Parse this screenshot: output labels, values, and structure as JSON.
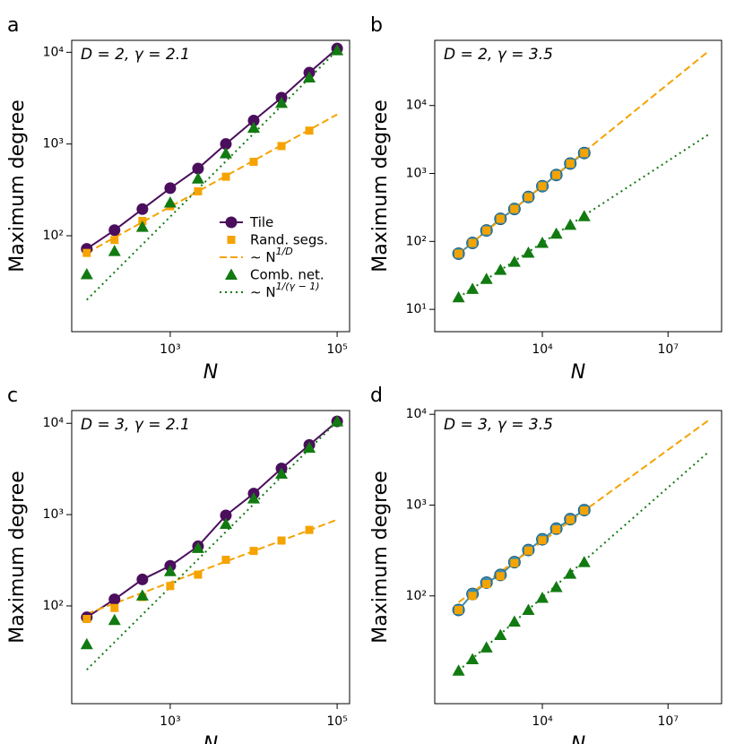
{
  "chart_data": [
    {
      "type": "line",
      "panel_label": "a",
      "annotation": "D = 2, γ = 2.1",
      "xlabel": "N",
      "ylabel": "Maximum degree",
      "log_x": true,
      "log_y": true,
      "legend": "center right",
      "xlim": [
        66,
        141000
      ],
      "ylim": [
        9,
        13500
      ],
      "xticks": [
        {
          "value": 1000,
          "label": "10³"
        },
        {
          "value": 100000,
          "label": "10⁵"
        }
      ],
      "yticks": [
        {
          "value": 100,
          "label": "10²"
        },
        {
          "value": 1000,
          "label": "10³"
        },
        {
          "value": 10000,
          "label": "10⁴"
        }
      ],
      "x": [
        100,
        215,
        464,
        1000,
        2154,
        4642,
        10000,
        21544,
        46416,
        100000
      ],
      "series": [
        {
          "name": "Tile",
          "color": "#4a0e5c",
          "marker": "circle",
          "line": "solid",
          "values": [
            72,
            115,
            195,
            330,
            540,
            1000,
            1800,
            3200,
            6000,
            11000
          ]
        },
        {
          "name": "Rand. segs.",
          "color": "#f5a300",
          "marker": "square",
          "line": "none",
          "values": [
            65,
            90,
            145,
            210,
            305,
            440,
            640,
            950,
            1400,
            null
          ]
        },
        {
          "name": "∼ N",
          "name_sup": "1/D",
          "color": "#f5a300",
          "marker": "none",
          "line": "dashed",
          "x": [
            100,
            100000
          ],
          "values": [
            65,
            2100
          ]
        },
        {
          "name": "Comb. net.",
          "color": "#117a11",
          "marker": "triangle",
          "line": "none",
          "values": [
            38,
            68,
            125,
            230,
            420,
            790,
            1500,
            2800,
            5300,
            10500
          ]
        },
        {
          "name": "∼ N",
          "name_sup": "1/(γ − 1)",
          "color": "#117a11",
          "marker": "none",
          "line": "dotted",
          "x": [
            100,
            100000
          ],
          "values": [
            20,
            10500
          ]
        }
      ]
    },
    {
      "type": "line",
      "panel_label": "b",
      "annotation": "D = 2, γ = 3.5",
      "xlabel": "N",
      "ylabel": "Maximum degree",
      "log_x": true,
      "log_y": true,
      "xlim": [
        27,
        190000000
      ],
      "ylim": [
        4.7,
        91000
      ],
      "xticks": [
        {
          "value": 10000,
          "label": "10⁴"
        },
        {
          "value": 10000000,
          "label": "10⁷"
        }
      ],
      "yticks": [
        {
          "value": 10,
          "label": "10¹"
        },
        {
          "value": 100,
          "label": "10²"
        },
        {
          "value": 1000,
          "label": "10³"
        },
        {
          "value": 10000,
          "label": "10⁴"
        }
      ],
      "x": [
        100,
        215,
        464,
        1000,
        2154,
        4642,
        10000,
        21544,
        46416,
        100000
      ],
      "series": [
        {
          "color": "#3a8db0",
          "marker": "circle",
          "line": "solid",
          "values": [
            66,
            95,
            145,
            215,
            300,
            450,
            650,
            950,
            1400,
            2000
          ]
        },
        {
          "color": "#f5a300",
          "marker": "square",
          "line": "none",
          "values": [
            66,
            95,
            145,
            215,
            300,
            450,
            650,
            950,
            1400,
            2000
          ]
        },
        {
          "color": "#f5a300",
          "marker": "none",
          "line": "dashed",
          "x": [
            100,
            90000000
          ],
          "values": [
            66,
            62000
          ]
        },
        {
          "color": "#117a11",
          "marker": "triangle",
          "line": "none",
          "values": [
            15,
            20,
            28,
            38,
            50,
            68,
            95,
            130,
            175,
            235
          ]
        },
        {
          "color": "#117a11",
          "marker": "none",
          "line": "dotted",
          "x": [
            100,
            90000000
          ],
          "values": [
            15,
            3700
          ]
        }
      ]
    },
    {
      "type": "line",
      "panel_label": "c",
      "annotation": "D = 3, γ = 2.1",
      "xlabel": "N",
      "ylabel": "Maximum degree",
      "log_x": true,
      "log_y": true,
      "xlim": [
        66,
        141000
      ],
      "ylim": [
        8.5,
        13800
      ],
      "xticks": [
        {
          "value": 1000,
          "label": "10³"
        },
        {
          "value": 100000,
          "label": "10⁵"
        }
      ],
      "yticks": [
        {
          "value": 100,
          "label": "10²"
        },
        {
          "value": 1000,
          "label": "10³"
        },
        {
          "value": 10000,
          "label": "10⁴"
        }
      ],
      "x": [
        100,
        215,
        464,
        1000,
        2154,
        4642,
        10000,
        21544,
        46416,
        100000
      ],
      "series": [
        {
          "color": "#4a0e5c",
          "marker": "circle",
          "line": "solid",
          "values": [
            75,
            118,
            195,
            275,
            450,
            980,
            1700,
            3200,
            5800,
            10500
          ]
        },
        {
          "color": "#f5a300",
          "marker": "square",
          "line": "none",
          "values": [
            72,
            95,
            125,
            165,
            220,
            320,
            400,
            520,
            680,
            null
          ]
        },
        {
          "color": "#f5a300",
          "marker": "none",
          "line": "dashed",
          "x": [
            100,
            100000
          ],
          "values": [
            82,
            880
          ]
        },
        {
          "color": "#117a11",
          "marker": "triangle",
          "line": "none",
          "values": [
            38,
            70,
            130,
            240,
            430,
            790,
            1500,
            2800,
            5400,
            10500
          ]
        },
        {
          "color": "#117a11",
          "marker": "none",
          "line": "dotted",
          "x": [
            100,
            100000
          ],
          "values": [
            20,
            10500
          ]
        }
      ]
    },
    {
      "type": "line",
      "panel_label": "d",
      "annotation": "D = 3, γ = 3.5",
      "xlabel": "N",
      "ylabel": "Maximum degree",
      "log_x": true,
      "log_y": true,
      "xlim": [
        27,
        190000000
      ],
      "ylim": [
        6.5,
        11000
      ],
      "xticks": [
        {
          "value": 10000,
          "label": "10⁴"
        },
        {
          "value": 10000000,
          "label": "10⁷"
        }
      ],
      "yticks": [
        {
          "value": 100,
          "label": "10²"
        },
        {
          "value": 1000,
          "label": "10³"
        },
        {
          "value": 10000,
          "label": "10⁴"
        }
      ],
      "x": [
        100,
        215,
        464,
        1000,
        2154,
        4642,
        10000,
        21544,
        46416,
        100000
      ],
      "series": [
        {
          "color": "#3a8db0",
          "marker": "circle",
          "line": "solid",
          "values": [
            70,
            105,
            140,
            170,
            235,
            320,
            420,
            550,
            700,
            880
          ]
        },
        {
          "color": "#f5a300",
          "marker": "square",
          "line": "none",
          "values": [
            70,
            100,
            135,
            165,
            230,
            315,
            410,
            540,
            690,
            870
          ]
        },
        {
          "color": "#f5a300",
          "marker": "none",
          "line": "dashed",
          "x": [
            100,
            90000000
          ],
          "values": [
            85,
            8500
          ]
        },
        {
          "color": "#117a11",
          "marker": "triangle",
          "line": "none",
          "values": [
            15,
            20,
            27,
            37,
            52,
            70,
            95,
            125,
            175,
            235
          ]
        },
        {
          "color": "#117a11",
          "marker": "none",
          "line": "dotted",
          "x": [
            100,
            90000000
          ],
          "values": [
            15,
            3800
          ]
        }
      ]
    }
  ]
}
